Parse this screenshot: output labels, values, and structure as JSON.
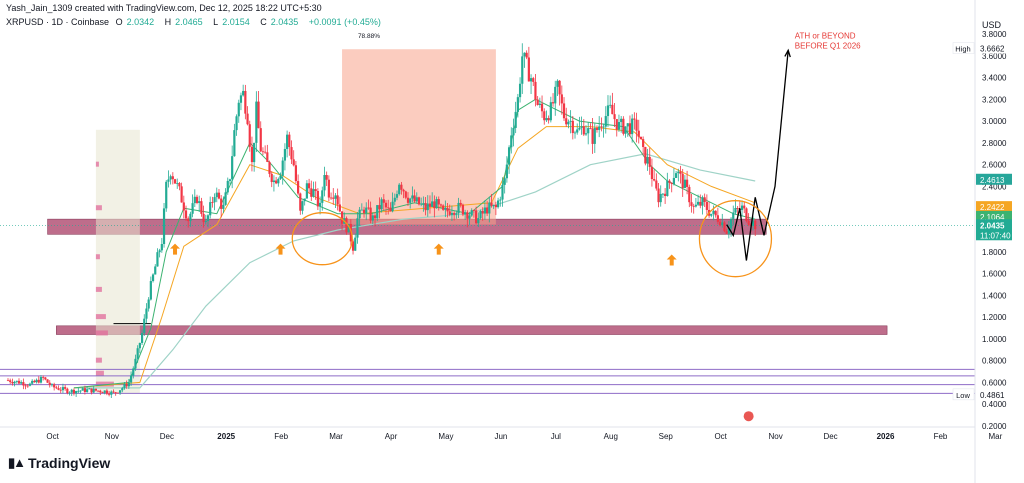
{
  "header": {
    "attribution": "Yash_Jain_1309 created with TradingView.com, Dec 12, 2025 18:22 UTC+5:30",
    "symbol": "XRPUSD · 1D · Coinbase",
    "o_label": "O",
    "o_value": "2.0342",
    "h_label": "H",
    "h_value": "2.0465",
    "l_label": "L",
    "l_value": "2.0154",
    "c_label": "C",
    "c_value": "2.0435",
    "change": "+0.0091 (+0.45%)"
  },
  "currency": "USD",
  "logo_text": "TradingView",
  "colors": {
    "up": "#22ab94",
    "down": "#f23645",
    "zone": "#a83c64",
    "box": "#f7a38b",
    "ema_fast": "#3cb371",
    "ema_mid": "#f5a623",
    "ema_slow": "#9fd3c7",
    "orange": "#f7931a",
    "purple": "#8e6cc7"
  },
  "chart_data": {
    "type": "candlestick",
    "title": "XRPUSD · 1D · Coinbase",
    "ylabel": "USD",
    "ylim": [
      0.2,
      3.8
    ],
    "yticks": [
      "3.8000",
      "3.6000",
      "3.4000",
      "3.2000",
      "3.0000",
      "2.8000",
      "2.6000",
      "2.4000",
      "2.2000",
      "2.0000",
      "1.8000",
      "1.6000",
      "1.4000",
      "1.2000",
      "1.0000",
      "0.8000",
      "0.6000",
      "0.4000",
      "0.2000"
    ],
    "xticks": [
      "Oct",
      "Nov",
      "Dec",
      "2025",
      "Feb",
      "Mar",
      "Apr",
      "May",
      "Jun",
      "Jul",
      "Aug",
      "Sep",
      "Oct",
      "Nov",
      "Dec",
      "2026",
      "Feb",
      "Mar"
    ],
    "price_path": [
      [
        0,
        0.62
      ],
      [
        6,
        0.6
      ],
      [
        10,
        0.58
      ],
      [
        16,
        0.64
      ],
      [
        20,
        0.56
      ],
      [
        28,
        0.52
      ],
      [
        36,
        0.53
      ],
      [
        44,
        0.52
      ],
      [
        48,
        0.5
      ],
      [
        52,
        0.55
      ],
      [
        55,
        0.6
      ],
      [
        58,
        0.8
      ],
      [
        61,
        1.05
      ],
      [
        64,
        1.4
      ],
      [
        68,
        1.75
      ],
      [
        70,
        1.9
      ],
      [
        72,
        2.4
      ],
      [
        74,
        2.55
      ],
      [
        78,
        2.35
      ],
      [
        82,
        2.1
      ],
      [
        86,
        2.3
      ],
      [
        90,
        2.05
      ],
      [
        94,
        2.35
      ],
      [
        98,
        2.2
      ],
      [
        101,
        2.5
      ],
      [
        103,
        2.9
      ],
      [
        105,
        3.2
      ],
      [
        107,
        3.25
      ],
      [
        109,
        3.05
      ],
      [
        111,
        2.6
      ],
      [
        113,
        3.1
      ],
      [
        115,
        2.75
      ],
      [
        118,
        2.6
      ],
      [
        121,
        2.45
      ],
      [
        124,
        2.55
      ],
      [
        127,
        2.85
      ],
      [
        130,
        2.6
      ],
      [
        133,
        2.15
      ],
      [
        136,
        2.4
      ],
      [
        139,
        2.35
      ],
      [
        142,
        2.2
      ],
      [
        144,
        2.55
      ],
      [
        146,
        2.35
      ],
      [
        149,
        2.35
      ],
      [
        152,
        2.1
      ],
      [
        155,
        2.0
      ],
      [
        157,
        1.85
      ],
      [
        159,
        2.1
      ],
      [
        162,
        2.2
      ],
      [
        166,
        2.1
      ],
      [
        170,
        2.25
      ],
      [
        174,
        2.15
      ],
      [
        178,
        2.45
      ],
      [
        182,
        2.3
      ],
      [
        186,
        2.25
      ],
      [
        190,
        2.2
      ],
      [
        194,
        2.25
      ],
      [
        198,
        2.15
      ],
      [
        202,
        2.2
      ],
      [
        206,
        2.2
      ],
      [
        210,
        2.15
      ],
      [
        214,
        2.1
      ],
      [
        218,
        2.2
      ],
      [
        222,
        2.2
      ],
      [
        226,
        2.45
      ],
      [
        229,
        2.9
      ],
      [
        232,
        3.2
      ],
      [
        234,
        3.6
      ],
      [
        236,
        3.5
      ],
      [
        238,
        3.4
      ],
      [
        241,
        3.15
      ],
      [
        244,
        3.05
      ],
      [
        247,
        3.1
      ],
      [
        250,
        3.3
      ],
      [
        253,
        3.05
      ],
      [
        256,
        3.0
      ],
      [
        259,
        2.9
      ],
      [
        262,
        2.95
      ],
      [
        266,
        2.85
      ],
      [
        270,
        3.0
      ],
      [
        274,
        3.1
      ],
      [
        278,
        2.95
      ],
      [
        282,
        2.95
      ],
      [
        286,
        2.95
      ],
      [
        289,
        2.7
      ],
      [
        292,
        2.6
      ],
      [
        294,
        2.4
      ],
      [
        296,
        2.3
      ],
      [
        300,
        2.4
      ],
      [
        304,
        2.55
      ],
      [
        308,
        2.4
      ],
      [
        312,
        2.2
      ],
      [
        316,
        2.25
      ],
      [
        320,
        2.15
      ],
      [
        324,
        2.1
      ],
      [
        327,
        2.0
      ],
      [
        330,
        2.15
      ],
      [
        334,
        2.2
      ],
      [
        337,
        2.1
      ],
      [
        340,
        2.05
      ]
    ],
    "ema_fast": [
      [
        30,
        0.55
      ],
      [
        55,
        0.6
      ],
      [
        65,
        1.1
      ],
      [
        72,
        1.8
      ],
      [
        80,
        2.2
      ],
      [
        95,
        2.15
      ],
      [
        110,
        2.8
      ],
      [
        120,
        2.6
      ],
      [
        132,
        2.3
      ],
      [
        150,
        2.15
      ],
      [
        165,
        2.15
      ],
      [
        185,
        2.25
      ],
      [
        210,
        2.15
      ],
      [
        225,
        2.4
      ],
      [
        232,
        3.1
      ],
      [
        240,
        3.2
      ],
      [
        260,
        3.0
      ],
      [
        280,
        2.95
      ],
      [
        292,
        2.6
      ],
      [
        300,
        2.45
      ],
      [
        315,
        2.3
      ],
      [
        330,
        2.15
      ],
      [
        340,
        2.1
      ]
    ],
    "ema_mid": [
      [
        30,
        0.55
      ],
      [
        60,
        0.6
      ],
      [
        70,
        1.2
      ],
      [
        80,
        1.85
      ],
      [
        95,
        2.05
      ],
      [
        110,
        2.6
      ],
      [
        125,
        2.5
      ],
      [
        140,
        2.3
      ],
      [
        160,
        2.15
      ],
      [
        190,
        2.2
      ],
      [
        220,
        2.25
      ],
      [
        232,
        2.75
      ],
      [
        245,
        2.95
      ],
      [
        265,
        2.95
      ],
      [
        285,
        2.9
      ],
      [
        300,
        2.6
      ],
      [
        320,
        2.4
      ],
      [
        340,
        2.25
      ]
    ],
    "ema_slow": [
      [
        30,
        0.55
      ],
      [
        60,
        0.55
      ],
      [
        75,
        0.9
      ],
      [
        90,
        1.3
      ],
      [
        110,
        1.7
      ],
      [
        130,
        1.9
      ],
      [
        150,
        2.0
      ],
      [
        180,
        2.1
      ],
      [
        210,
        2.15
      ],
      [
        240,
        2.35
      ],
      [
        265,
        2.6
      ],
      [
        290,
        2.7
      ],
      [
        315,
        2.55
      ],
      [
        340,
        2.45
      ]
    ],
    "zones": [
      {
        "name": "upper-support-zone",
        "from": 1.96,
        "to": 2.1,
        "x0": 18,
        "x1": 345
      },
      {
        "name": "lower-support-zone",
        "from": 1.04,
        "to": 1.12,
        "x0": 22,
        "x1": 400
      }
    ],
    "horizontal_levels": [
      0.72,
      0.66,
      0.58,
      0.5
    ],
    "measure_box": {
      "label": "78.88%",
      "x0": 152,
      "x1": 222,
      "from": 2.05,
      "to": 3.66
    },
    "forecast_path": [
      [
        327,
        2.05
      ],
      [
        330,
        1.95
      ],
      [
        333,
        2.2
      ],
      [
        336,
        1.72
      ],
      [
        340,
        2.3
      ],
      [
        344,
        1.95
      ],
      [
        349,
        2.4
      ],
      [
        355,
        3.65
      ]
    ],
    "annotation": "ATH or BEYOND\nBEFORE Q1 2026",
    "arrows_up_at": [
      [
        76,
        1.82
      ],
      [
        124,
        1.82
      ],
      [
        196,
        1.82
      ],
      [
        302,
        1.72
      ]
    ],
    "circles": [
      [
        143,
        1.92
      ],
      [
        331,
        1.92
      ]
    ],
    "price_labels": [
      {
        "name": "high",
        "tag": "High",
        "value": "3.6662",
        "bg": "#ffffff",
        "fg": "#131722"
      },
      {
        "name": "ema-slow",
        "tag": "",
        "value": "2.4613",
        "bg": "#26a69a",
        "fg": "#ffffff"
      },
      {
        "name": "ema-mid",
        "tag": "",
        "value": "2.2422",
        "bg": "#f5a623",
        "fg": "#ffffff"
      },
      {
        "name": "ema-fast",
        "tag": "",
        "value": "2.1064",
        "bg": "#3cb371",
        "fg": "#ffffff"
      },
      {
        "name": "last",
        "tag": "",
        "value": "2.0435",
        "bg": "#22ab94",
        "fg": "#ffffff"
      },
      {
        "name": "countdown",
        "tag": "",
        "value": "11:07:40",
        "bg": "#22ab94",
        "fg": "#ffffff"
      },
      {
        "name": "low",
        "tag": "Low",
        "value": "0.4861",
        "bg": "#ffffff",
        "fg": "#131722"
      }
    ]
  }
}
